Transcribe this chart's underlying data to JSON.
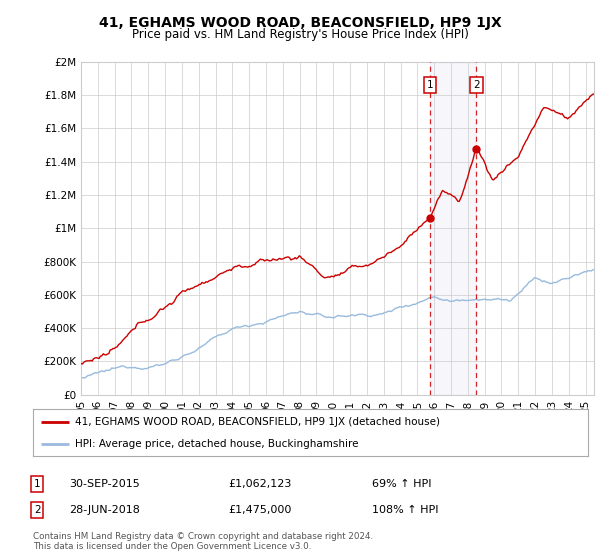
{
  "title": "41, EGHAMS WOOD ROAD, BEACONSFIELD, HP9 1JX",
  "subtitle": "Price paid vs. HM Land Registry's House Price Index (HPI)",
  "ylabel_ticks": [
    "£0",
    "£200K",
    "£400K",
    "£600K",
    "£800K",
    "£1M",
    "£1.2M",
    "£1.4M",
    "£1.6M",
    "£1.8M",
    "£2M"
  ],
  "ytick_values": [
    0,
    200000,
    400000,
    600000,
    800000,
    1000000,
    1200000,
    1400000,
    1600000,
    1800000,
    2000000
  ],
  "ylim": [
    0,
    2000000
  ],
  "xlim_start": 1995.0,
  "xlim_end": 2025.5,
  "background_color": "#ffffff",
  "grid_color": "#cccccc",
  "hpi_color": "#99bbdd",
  "price_color": "#cc0000",
  "sale1_date": 2015.75,
  "sale2_date": 2018.5,
  "sale1_price": 1062123,
  "sale2_price": 1475000,
  "legend_line1": "41, EGHAMS WOOD ROAD, BEACONSFIELD, HP9 1JX (detached house)",
  "legend_line2": "HPI: Average price, detached house, Buckinghamshire",
  "note1_label": "1",
  "note1_date": "30-SEP-2015",
  "note1_price": "£1,062,123",
  "note1_hpi": "69% ↑ HPI",
  "note2_label": "2",
  "note2_date": "28-JUN-2018",
  "note2_price": "£1,475,000",
  "note2_hpi": "108% ↑ HPI",
  "footer": "Contains HM Land Registry data © Crown copyright and database right 2024.\nThis data is licensed under the Open Government Licence v3.0.",
  "xtick_years": [
    1995,
    1996,
    1997,
    1998,
    1999,
    2000,
    2001,
    2002,
    2003,
    2004,
    2005,
    2006,
    2007,
    2008,
    2009,
    2010,
    2011,
    2012,
    2013,
    2014,
    2015,
    2016,
    2017,
    2018,
    2019,
    2020,
    2021,
    2022,
    2023,
    2024,
    2025
  ],
  "xtick_labels": [
    "95",
    "96",
    "97",
    "98",
    "99",
    "00",
    "01",
    "02",
    "03",
    "04",
    "05",
    "06",
    "07",
    "08",
    "09",
    "10",
    "11",
    "12",
    "13",
    "14",
    "15",
    "16",
    "17",
    "18",
    "19",
    "20",
    "21",
    "22",
    "23",
    "24",
    "25"
  ]
}
